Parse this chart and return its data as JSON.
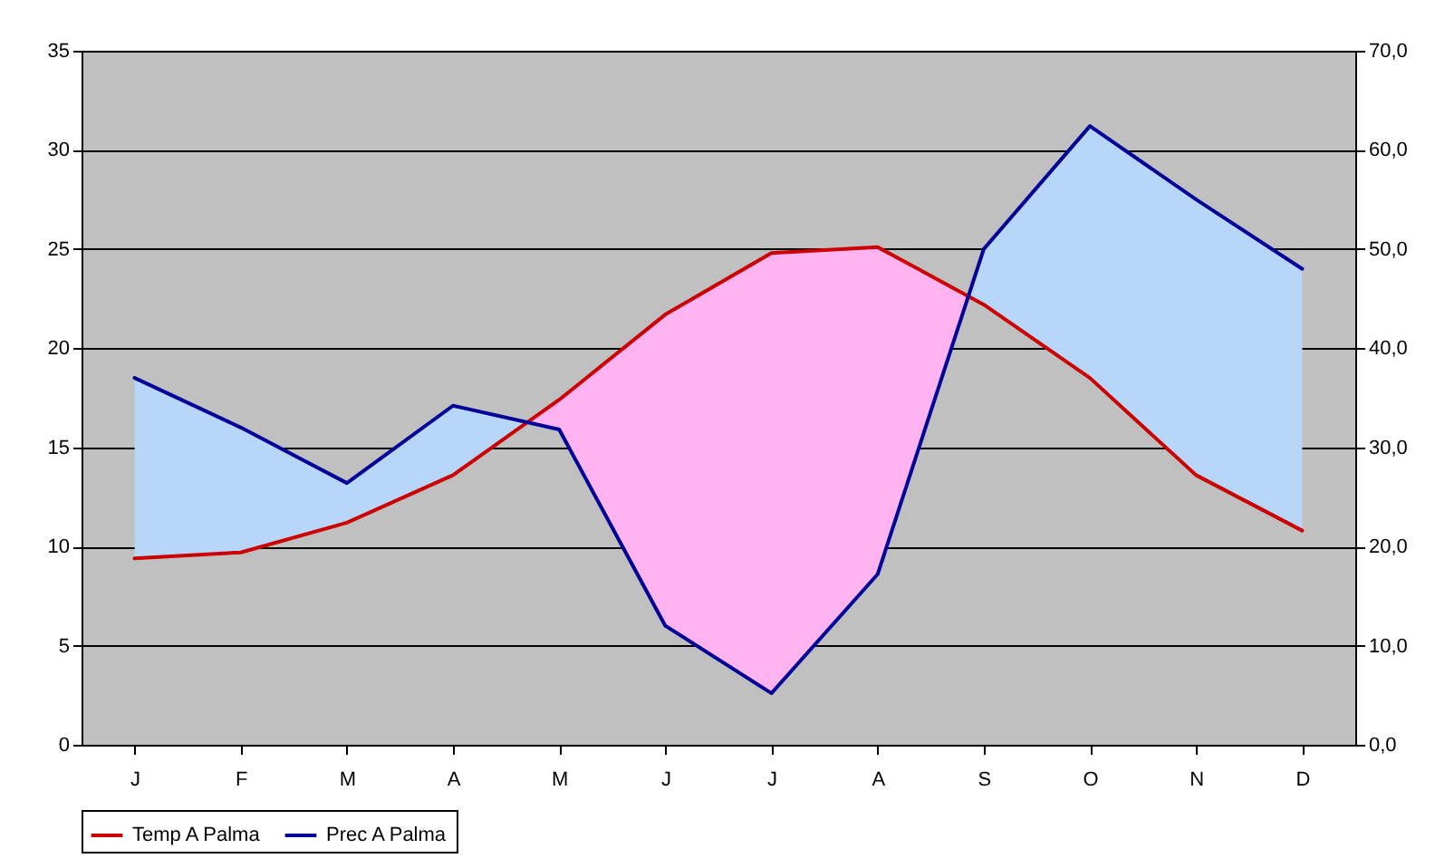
{
  "chart_data": {
    "type": "line",
    "categories": [
      "J",
      "F",
      "M",
      "A",
      "M",
      "J",
      "J",
      "A",
      "S",
      "O",
      "N",
      "D"
    ],
    "series": [
      {
        "name": "Temp A Palma",
        "color": "#cc0000",
        "values": [
          9.4,
          9.7,
          11.2,
          13.6,
          17.4,
          21.7,
          24.8,
          25.1,
          22.2,
          18.5,
          13.6,
          10.8
        ]
      },
      {
        "name": "Prec A Palma",
        "color": "#000099",
        "axis": "y2",
        "values": [
          37.0,
          32.0,
          26.4,
          34.2,
          31.8,
          12.0,
          5.2,
          17.2,
          50.0,
          62.4,
          55.0,
          48.0
        ]
      }
    ],
    "ylim": [
      0,
      35
    ],
    "yticks": [
      0,
      5,
      10,
      15,
      20,
      25,
      30,
      35
    ],
    "y2lim": [
      0,
      70
    ],
    "y2ticks": [
      {
        "value": 0,
        "label": "0,0"
      },
      {
        "value": 10,
        "label": "10,0"
      },
      {
        "value": 20,
        "label": "20,0"
      },
      {
        "value": 30,
        "label": "30,0"
      },
      {
        "value": 40,
        "label": "40,0"
      },
      {
        "value": 50,
        "label": "50,0"
      },
      {
        "value": 60,
        "label": "60,0"
      },
      {
        "value": 70,
        "label": "70,0"
      }
    ],
    "grid": "y",
    "legend": "bottom",
    "marker": "none",
    "line_style": "solid"
  }
}
